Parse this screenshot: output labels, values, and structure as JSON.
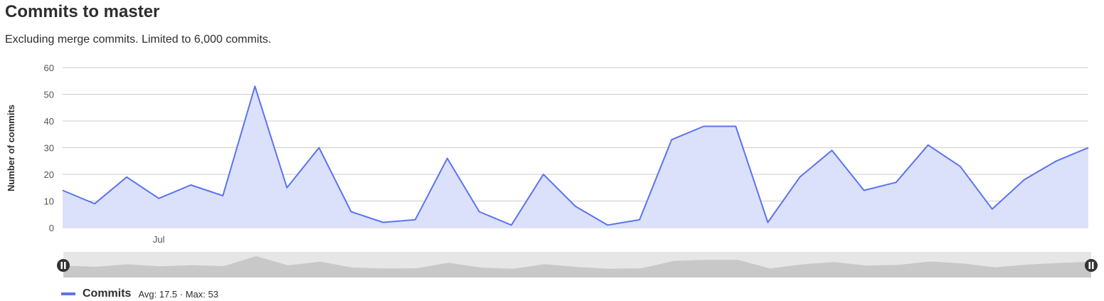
{
  "header": {
    "title": "Commits to master",
    "subtitle": "Excluding merge commits. Limited to 6,000 commits."
  },
  "colors": {
    "series_line": "#5c73f0",
    "series_fill": "#dbe1fb",
    "grid": "#cccccc",
    "tick_text": "#555555",
    "zoom_bg": "#e6e6e6",
    "zoom_area": "#c8c8c8",
    "handle": "#333333"
  },
  "chart_data": {
    "type": "area",
    "ylabel": "Number of commits",
    "ylim": [
      0,
      60
    ],
    "yticks": [
      0,
      10,
      20,
      30,
      40,
      50,
      60
    ],
    "x_tick_labels": [
      {
        "label": "Jul",
        "index": 3
      }
    ],
    "grid": true,
    "legend_position": "bottom-left",
    "series": [
      {
        "name": "Commits",
        "values": [
          14,
          9,
          19,
          11,
          16,
          12,
          53,
          15,
          30,
          6,
          2,
          3,
          26,
          6,
          1,
          20,
          8,
          1,
          3,
          33,
          38,
          38,
          2,
          19,
          29,
          14,
          17,
          31,
          23,
          7,
          18,
          25,
          30
        ]
      }
    ]
  },
  "legend": {
    "name": "Commits",
    "stats": "Avg: 17.5 · Max: 53"
  },
  "zoom": {
    "range": [
      0,
      1
    ]
  },
  "icons": {
    "handle": "pause-handle-icon"
  }
}
